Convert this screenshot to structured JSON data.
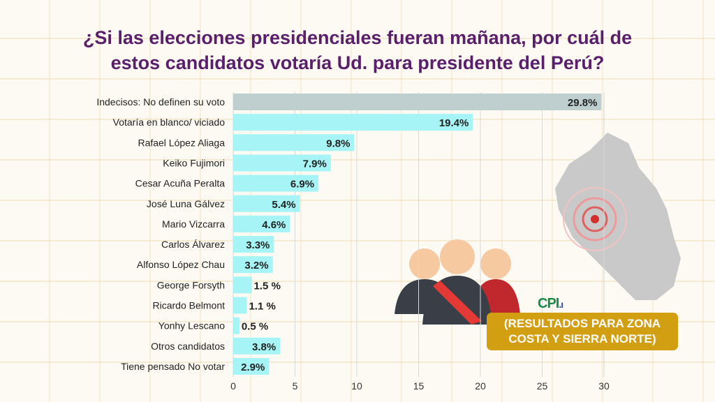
{
  "title_line1": "¿Si las elecciones presidenciales fueran mañana, por cuál de",
  "title_line2": "estos candidatos votaría Ud. para presidente del Perú?",
  "logo_text": "CPI",
  "note_line1": "(RESULTADOS PARA ZONA",
  "note_line2": "COSTA Y SIERRA NORTE)",
  "chart_data": {
    "type": "bar",
    "orientation": "horizontal",
    "categories": [
      "Indecisos: No definen su voto",
      "Votaría en blanco/ viciado",
      "Rafael López Aliaga",
      "Keiko Fujimori",
      "Cesar Acuña Peralta",
      "José Luna Gálvez",
      "Mario Vizcarra",
      "Carlos Álvarez",
      "Alfonso López Chau",
      "George Forsyth",
      "Ricardo Belmont",
      "Yonhy Lescano",
      "Otros candidatos",
      "Tiene pensado No votar"
    ],
    "values": [
      29.8,
      19.4,
      9.8,
      7.9,
      6.9,
      5.4,
      4.6,
      3.3,
      3.2,
      1.5,
      1.1,
      0.5,
      3.8,
      2.9
    ],
    "labels": [
      "29.8%",
      "19.4%",
      "9.8%",
      "7.9%",
      "6.9%",
      "5.4%",
      "4.6%",
      "3.3%",
      "3.2%",
      "1.5 %",
      "1.1 %",
      "0.5 %",
      "3.8%",
      "2.9%"
    ],
    "xlim": [
      0,
      30
    ],
    "xticks": [
      0,
      5,
      10,
      15,
      20,
      25,
      30
    ],
    "grid": true,
    "colors": {
      "first": "#bfcfcf",
      "other": "#a6f4f6",
      "title": "#5a1f6b"
    }
  }
}
